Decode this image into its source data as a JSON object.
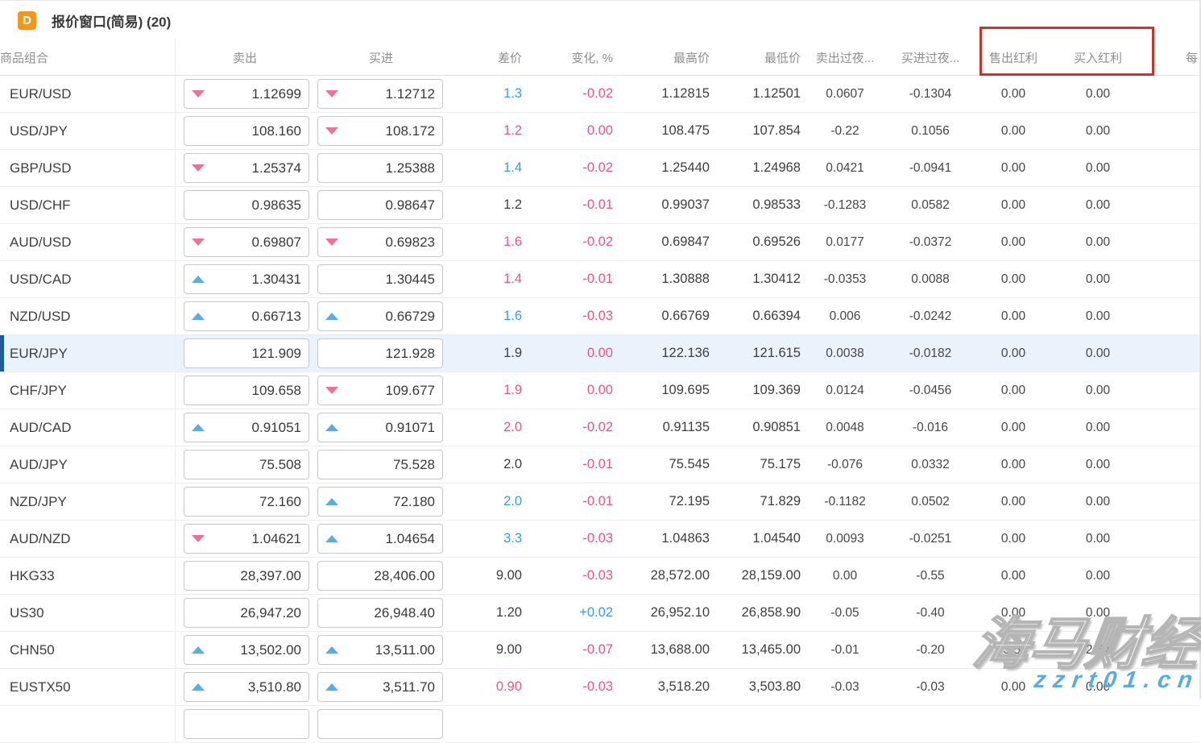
{
  "window": {
    "icon_letter": "D",
    "title": "报价窗口(简易) (20)"
  },
  "columns": [
    {
      "key": "symbol",
      "label": "商品组合"
    },
    {
      "key": "sell",
      "label": "卖出"
    },
    {
      "key": "buy",
      "label": "买进"
    },
    {
      "key": "spread",
      "label": "差价"
    },
    {
      "key": "change",
      "label": "变化, %"
    },
    {
      "key": "high",
      "label": "最高价"
    },
    {
      "key": "low",
      "label": "最低价"
    },
    {
      "key": "sell_overnight",
      "label": "卖出过夜..."
    },
    {
      "key": "buy_overnight",
      "label": "买进过夜..."
    },
    {
      "key": "sell_dividend",
      "label": "售出红利"
    },
    {
      "key": "buy_dividend",
      "label": "买入红利"
    },
    {
      "key": "per",
      "label": "每"
    }
  ],
  "annotation": {
    "highlighted_columns": [
      "售出红利",
      "买入红利"
    ],
    "box_color": "#cc332b"
  },
  "rows": [
    {
      "symbol": "EUR/USD",
      "sell": "1.12699",
      "sell_arrow": "down",
      "buy": "1.12712",
      "buy_arrow": "down",
      "spread": "1.3",
      "spread_color": "blue",
      "change": "-0.02",
      "change_color": "red",
      "high": "1.12815",
      "low": "1.12501",
      "sell_overnight": "0.0607",
      "buy_overnight": "-0.1304",
      "sell_dividend": "0.00",
      "buy_dividend": "0.00",
      "selected": false
    },
    {
      "symbol": "USD/JPY",
      "sell": "108.160",
      "sell_arrow": "none",
      "buy": "108.172",
      "buy_arrow": "down",
      "spread": "1.2",
      "spread_color": "red",
      "change": "0.00",
      "change_color": "red",
      "high": "108.475",
      "low": "107.854",
      "sell_overnight": "-0.22",
      "buy_overnight": "0.1056",
      "sell_dividend": "0.00",
      "buy_dividend": "0.00",
      "selected": false
    },
    {
      "symbol": "GBP/USD",
      "sell": "1.25374",
      "sell_arrow": "down",
      "buy": "1.25388",
      "buy_arrow": "none",
      "spread": "1.4",
      "spread_color": "blue",
      "change": "-0.02",
      "change_color": "red",
      "high": "1.25440",
      "low": "1.24968",
      "sell_overnight": "0.0421",
      "buy_overnight": "-0.0941",
      "sell_dividend": "0.00",
      "buy_dividend": "0.00",
      "selected": false
    },
    {
      "symbol": "USD/CHF",
      "sell": "0.98635",
      "sell_arrow": "none",
      "buy": "0.98647",
      "buy_arrow": "none",
      "spread": "1.2",
      "spread_color": "dark",
      "change": "-0.01",
      "change_color": "red",
      "high": "0.99037",
      "low": "0.98533",
      "sell_overnight": "-0.1283",
      "buy_overnight": "0.0582",
      "sell_dividend": "0.00",
      "buy_dividend": "0.00",
      "selected": false
    },
    {
      "symbol": "AUD/USD",
      "sell": "0.69807",
      "sell_arrow": "down",
      "buy": "0.69823",
      "buy_arrow": "down",
      "spread": "1.6",
      "spread_color": "red",
      "change": "-0.02",
      "change_color": "red",
      "high": "0.69847",
      "low": "0.69526",
      "sell_overnight": "0.0177",
      "buy_overnight": "-0.0372",
      "sell_dividend": "0.00",
      "buy_dividend": "0.00",
      "selected": false
    },
    {
      "symbol": "USD/CAD",
      "sell": "1.30431",
      "sell_arrow": "up",
      "buy": "1.30445",
      "buy_arrow": "none",
      "spread": "1.4",
      "spread_color": "red",
      "change": "-0.01",
      "change_color": "red",
      "high": "1.30888",
      "low": "1.30412",
      "sell_overnight": "-0.0353",
      "buy_overnight": "0.0088",
      "sell_dividend": "0.00",
      "buy_dividend": "0.00",
      "selected": false
    },
    {
      "symbol": "NZD/USD",
      "sell": "0.66713",
      "sell_arrow": "up",
      "buy": "0.66729",
      "buy_arrow": "up",
      "spread": "1.6",
      "spread_color": "blue",
      "change": "-0.03",
      "change_color": "red",
      "high": "0.66769",
      "low": "0.66394",
      "sell_overnight": "0.006",
      "buy_overnight": "-0.0242",
      "sell_dividend": "0.00",
      "buy_dividend": "0.00",
      "selected": false
    },
    {
      "symbol": "EUR/JPY",
      "sell": "121.909",
      "sell_arrow": "none",
      "buy": "121.928",
      "buy_arrow": "none",
      "spread": "1.9",
      "spread_color": "dark",
      "change": "0.00",
      "change_color": "red",
      "high": "122.136",
      "low": "121.615",
      "sell_overnight": "0.0038",
      "buy_overnight": "-0.0182",
      "sell_dividend": "0.00",
      "buy_dividend": "0.00",
      "selected": true
    },
    {
      "symbol": "CHF/JPY",
      "sell": "109.658",
      "sell_arrow": "none",
      "buy": "109.677",
      "buy_arrow": "down",
      "spread": "1.9",
      "spread_color": "red",
      "change": "0.00",
      "change_color": "red",
      "high": "109.695",
      "low": "109.369",
      "sell_overnight": "0.0124",
      "buy_overnight": "-0.0456",
      "sell_dividend": "0.00",
      "buy_dividend": "0.00",
      "selected": false
    },
    {
      "symbol": "AUD/CAD",
      "sell": "0.91051",
      "sell_arrow": "up",
      "buy": "0.91071",
      "buy_arrow": "up",
      "spread": "2.0",
      "spread_color": "red",
      "change": "-0.02",
      "change_color": "red",
      "high": "0.91135",
      "low": "0.90851",
      "sell_overnight": "0.0048",
      "buy_overnight": "-0.016",
      "sell_dividend": "0.00",
      "buy_dividend": "0.00",
      "selected": false
    },
    {
      "symbol": "AUD/JPY",
      "sell": "75.508",
      "sell_arrow": "none",
      "buy": "75.528",
      "buy_arrow": "none",
      "spread": "2.0",
      "spread_color": "dark",
      "change": "-0.01",
      "change_color": "red",
      "high": "75.545",
      "low": "75.175",
      "sell_overnight": "-0.076",
      "buy_overnight": "0.0332",
      "sell_dividend": "0.00",
      "buy_dividend": "0.00",
      "selected": false
    },
    {
      "symbol": "NZD/JPY",
      "sell": "72.160",
      "sell_arrow": "none",
      "buy": "72.180",
      "buy_arrow": "up",
      "spread": "2.0",
      "spread_color": "blue",
      "change": "-0.01",
      "change_color": "red",
      "high": "72.195",
      "low": "71.829",
      "sell_overnight": "-0.1182",
      "buy_overnight": "0.0502",
      "sell_dividend": "0.00",
      "buy_dividend": "0.00",
      "selected": false
    },
    {
      "symbol": "AUD/NZD",
      "sell": "1.04621",
      "sell_arrow": "down",
      "buy": "1.04654",
      "buy_arrow": "up",
      "spread": "3.3",
      "spread_color": "blue",
      "change": "-0.03",
      "change_color": "red",
      "high": "1.04863",
      "low": "1.04540",
      "sell_overnight": "0.0093",
      "buy_overnight": "-0.0251",
      "sell_dividend": "0.00",
      "buy_dividend": "0.00",
      "selected": false
    },
    {
      "symbol": "HKG33",
      "sell": "28,397.00",
      "sell_arrow": "none",
      "buy": "28,406.00",
      "buy_arrow": "none",
      "spread": "9.00",
      "spread_color": "dark",
      "change": "-0.03",
      "change_color": "red",
      "high": "28,572.00",
      "low": "28,159.00",
      "sell_overnight": "0.00",
      "buy_overnight": "-0.55",
      "sell_dividend": "0.00",
      "buy_dividend": "0.00",
      "selected": false
    },
    {
      "symbol": "US30",
      "sell": "26,947.20",
      "sell_arrow": "none",
      "buy": "26,948.40",
      "buy_arrow": "none",
      "spread": "1.20",
      "spread_color": "dark",
      "change": "+0.02",
      "change_color": "blue",
      "high": "26,952.10",
      "low": "26,858.90",
      "sell_overnight": "-0.05",
      "buy_overnight": "-0.40",
      "sell_dividend": "0.00",
      "buy_dividend": "0.00",
      "selected": false
    },
    {
      "symbol": "CHN50",
      "sell": "13,502.00",
      "sell_arrow": "up",
      "buy": "13,511.00",
      "buy_arrow": "up",
      "spread": "9.00",
      "spread_color": "dark",
      "change": "-0.07",
      "change_color": "red",
      "high": "13,688.00",
      "low": "13,465.00",
      "sell_overnight": "-0.01",
      "buy_overnight": "-0.20",
      "sell_dividend": "-3.53",
      "buy_dividend": "2.64",
      "selected": false
    },
    {
      "symbol": "EUSTX50",
      "sell": "3,510.80",
      "sell_arrow": "up",
      "buy": "3,511.70",
      "buy_arrow": "up",
      "spread": "0.90",
      "spread_color": "red",
      "change": "-0.03",
      "change_color": "red",
      "high": "3,518.20",
      "low": "3,503.80",
      "sell_overnight": "-0.03",
      "buy_overnight": "-0.03",
      "sell_dividend": "0.00",
      "buy_dividend": "0.00",
      "selected": false
    },
    {
      "symbol": "",
      "sell": "",
      "sell_arrow": "none",
      "buy": "",
      "buy_arrow": "none",
      "spread": "",
      "spread_color": "dark",
      "change": "",
      "change_color": "red",
      "high": "",
      "low": "",
      "sell_overnight": "",
      "buy_overnight": "",
      "sell_dividend": "",
      "buy_dividend": "",
      "selected": false,
      "partial": true
    }
  ],
  "watermark": {
    "line1": "海马财经",
    "line2": "zzrt01.cn"
  },
  "colors": {
    "up_arrow": "#58ade8",
    "down_arrow": "#ef7296",
    "value_blue": "#36a0d6",
    "value_red": "#ea587e",
    "value_dark": "#3d3d3d",
    "selected_row_bg": "#eaf2fc",
    "selected_row_bar": "#1d5a9e",
    "icon_orange": "#f0971e",
    "annotation_red": "#cc332b"
  }
}
